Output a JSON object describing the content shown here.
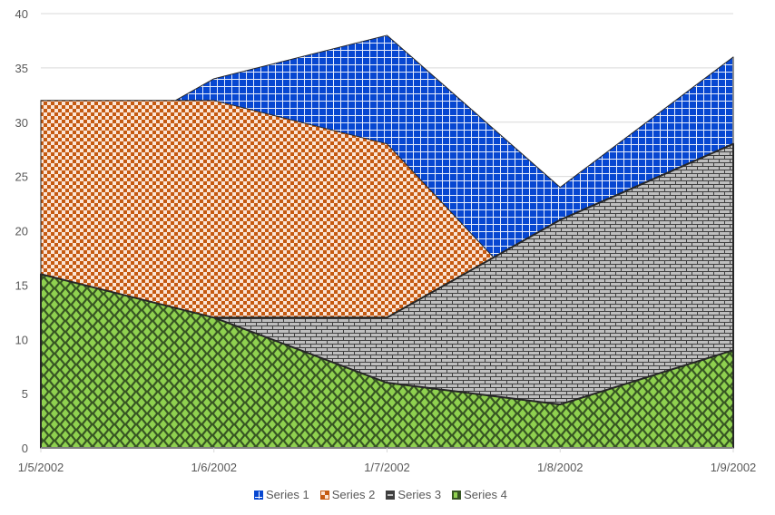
{
  "chart_data": {
    "type": "area",
    "stacked": false,
    "title": "",
    "xlabel": "",
    "ylabel": "",
    "categories": [
      "1/5/2002",
      "1/6/2002",
      "1/7/2002",
      "1/8/2002",
      "1/9/2002"
    ],
    "series": [
      {
        "name": "Series 1",
        "values": [
          25,
          34,
          38,
          24,
          36
        ],
        "pattern": "grid",
        "fg": "#ffffff",
        "bg": "#0747d1"
      },
      {
        "name": "Series 2",
        "values": [
          32,
          32,
          28,
          11,
          0
        ],
        "pattern": "checker",
        "fg": "#c55a11",
        "bg": "#fbe5d6"
      },
      {
        "name": "Series 3",
        "values": [
          12,
          12,
          12,
          21,
          28
        ],
        "pattern": "brick",
        "fg": "#c0c0c0",
        "bg": "#3f3f3f"
      },
      {
        "name": "Series 4",
        "values": [
          16,
          12,
          6,
          4,
          9
        ],
        "pattern": "diamond",
        "fg": "#8fd14f",
        "bg": "#375623"
      }
    ],
    "ylim": [
      0,
      40
    ],
    "yticks": [
      0,
      5,
      10,
      15,
      20,
      25,
      30,
      35,
      40
    ],
    "grid": true,
    "legend_position": "bottom"
  },
  "legend": {
    "items": [
      "Series 1",
      "Series 2",
      "Series 3",
      "Series 4"
    ]
  }
}
